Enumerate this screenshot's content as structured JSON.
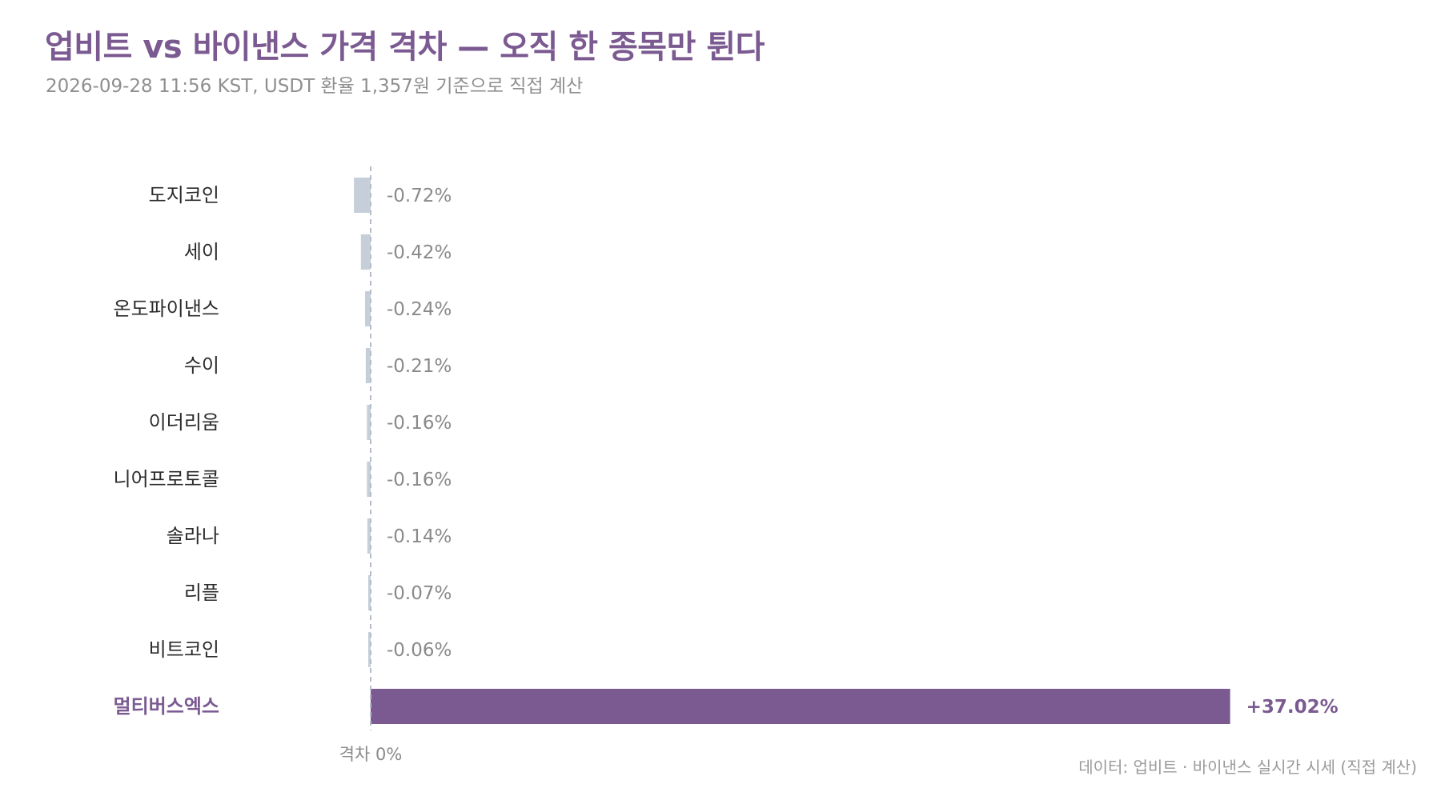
{
  "header": {
    "title": "업비트 vs 바이낸스 가격 격차 — 오직 한 종목만 튄다",
    "subtitle": "2026-09-28 11:56 KST, USDT 환율 1,357원 기준으로 직접 계산"
  },
  "footer": {
    "source": "데이터: 업비트 · 바이낸스 실시간 시세 (직접 계산)"
  },
  "colors": {
    "title": "#7b5a91",
    "highlight_bar": "#7b5a91",
    "normal_bar": "#c5ced9",
    "zero_line": "#b5bcc6"
  },
  "chart_data": {
    "type": "bar",
    "orientation": "horizontal",
    "categories": [
      "도지코인",
      "세이",
      "온도파이낸스",
      "수이",
      "이더리움",
      "니어프로토콜",
      "솔라나",
      "리플",
      "비트코인",
      "멀티버스엑스"
    ],
    "values": [
      -0.72,
      -0.42,
      -0.24,
      -0.21,
      -0.16,
      -0.16,
      -0.14,
      -0.07,
      -0.06,
      37.02
    ],
    "value_labels": [
      "-0.72%",
      "-0.42%",
      "-0.24%",
      "-0.21%",
      "-0.16%",
      "-0.16%",
      "-0.14%",
      "-0.07%",
      "-0.06%",
      "+37.02%"
    ],
    "highlight": "멀티버스엑스",
    "zero_label": "격차 0%",
    "xlabel": "",
    "ylabel": "",
    "xlim": [
      -1.0,
      37.02
    ],
    "grid": false,
    "legend": "none"
  }
}
